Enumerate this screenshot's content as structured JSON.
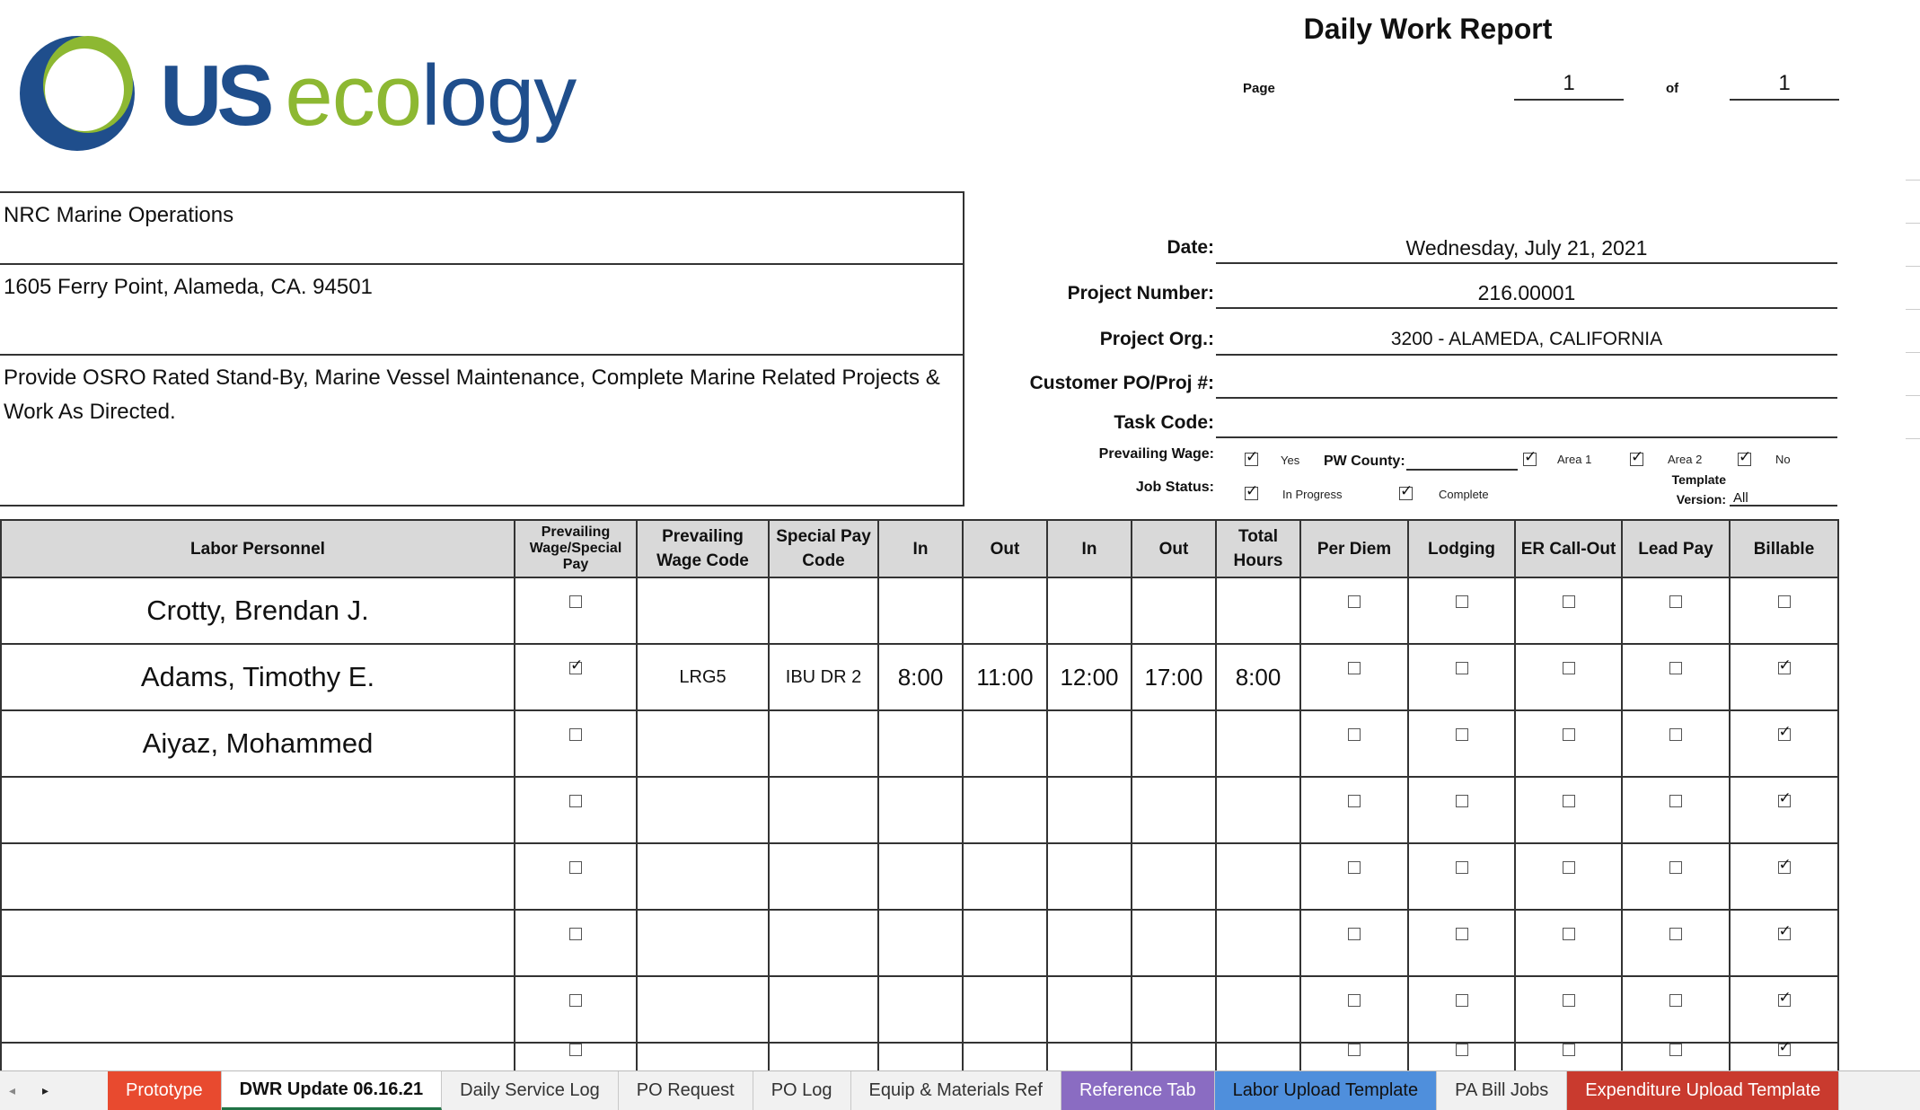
{
  "logo": {
    "us": "US",
    "eco": "eco",
    "logy": "logy"
  },
  "header": {
    "title": "Daily Work Report",
    "page_label": "Page",
    "page_number": "1",
    "of_label": "of",
    "page_total": "1"
  },
  "address": {
    "name": "NRC Marine Operations",
    "street": "1605 Ferry Point, Alameda, CA. 94501",
    "description": "Provide OSRO Rated Stand-By, Marine Vessel Maintenance, Complete Marine Related Projects & Work As Directed."
  },
  "info": {
    "date_label": "Date:",
    "date_value": "Wednesday, July 21, 2021",
    "project_number_label": "Project Number:",
    "project_number_value": "216.00001",
    "project_org_label": "Project Org.:",
    "project_org_value": "3200 - ALAMEDA, CALIFORNIA",
    "customer_po_label": "Customer PO/Proj #:",
    "customer_po_value": "",
    "task_code_label": "Task Code:",
    "task_code_value": "",
    "prevailing_wage_label": "Prevailing Wage:",
    "yes_label": "Yes",
    "pw_county_label": "PW County:",
    "area1_label": "Area 1",
    "area2_label": "Area 2",
    "no_label": "No",
    "job_status_label": "Job Status:",
    "in_progress_label": "In Progress",
    "complete_label": "Complete",
    "template_label": "Template",
    "version_label": "Version:",
    "version_value": "All"
  },
  "table": {
    "headers": [
      "Labor Personnel",
      "Prevailing Wage/Special Pay",
      "Prevailing Wage Code",
      "Special Pay Code",
      "In",
      "Out",
      "In",
      "Out",
      "Total Hours",
      "Per Diem",
      "Lodging",
      "ER Call-Out",
      "Lead Pay",
      "Billable"
    ],
    "rows": [
      {
        "name": "Crotty, Brendan J.",
        "pw": false,
        "pw_code": "",
        "sp_code": "",
        "in1": "",
        "out1": "",
        "in2": "",
        "out2": "",
        "total": "",
        "per_diem": false,
        "lodging": false,
        "er": false,
        "lead": false,
        "billable": false
      },
      {
        "name": "Adams, Timothy E.",
        "pw": true,
        "pw_code": "LRG5",
        "sp_code": "IBU DR 2",
        "in1": "8:00",
        "out1": "11:00",
        "in2": "12:00",
        "out2": "17:00",
        "total": "8:00",
        "per_diem": false,
        "lodging": false,
        "er": false,
        "lead": false,
        "billable": true
      },
      {
        "name": "Aiyaz, Mohammed",
        "pw": false,
        "pw_code": "",
        "sp_code": "",
        "in1": "",
        "out1": "",
        "in2": "",
        "out2": "",
        "total": "",
        "per_diem": false,
        "lodging": false,
        "er": false,
        "lead": false,
        "billable": true
      },
      {
        "name": "",
        "pw": false,
        "pw_code": "",
        "sp_code": "",
        "in1": "",
        "out1": "",
        "in2": "",
        "out2": "",
        "total": "",
        "per_diem": false,
        "lodging": false,
        "er": false,
        "lead": false,
        "billable": true
      },
      {
        "name": "",
        "pw": false,
        "pw_code": "",
        "sp_code": "",
        "in1": "",
        "out1": "",
        "in2": "",
        "out2": "",
        "total": "",
        "per_diem": false,
        "lodging": false,
        "er": false,
        "lead": false,
        "billable": true
      },
      {
        "name": "",
        "pw": false,
        "pw_code": "",
        "sp_code": "",
        "in1": "",
        "out1": "",
        "in2": "",
        "out2": "",
        "total": "",
        "per_diem": false,
        "lodging": false,
        "er": false,
        "lead": false,
        "billable": true
      },
      {
        "name": "",
        "pw": false,
        "pw_code": "",
        "sp_code": "",
        "in1": "",
        "out1": "",
        "in2": "",
        "out2": "",
        "total": "",
        "per_diem": false,
        "lodging": false,
        "er": false,
        "lead": false,
        "billable": true
      },
      {
        "name": "",
        "pw": false,
        "pw_code": "",
        "sp_code": "",
        "in1": "",
        "out1": "",
        "in2": "",
        "out2": "",
        "total": "",
        "per_diem": false,
        "lodging": false,
        "er": false,
        "lead": false,
        "billable": true
      }
    ]
  },
  "tabs": [
    {
      "label": "Prototype",
      "style": "red"
    },
    {
      "label": "DWR Update 06.16.21",
      "style": "active"
    },
    {
      "label": "Daily Service Log",
      "style": ""
    },
    {
      "label": "PO Request",
      "style": ""
    },
    {
      "label": "PO Log",
      "style": ""
    },
    {
      "label": "Equip & Materials Ref",
      "style": ""
    },
    {
      "label": "Reference Tab",
      "style": "purple"
    },
    {
      "label": "Labor Upload Template",
      "style": "blue"
    },
    {
      "label": "PA Bill Jobs",
      "style": ""
    },
    {
      "label": "Expenditure Upload Template",
      "style": "darkred"
    }
  ],
  "colors": {
    "logo_blue": "#1f4e8c",
    "logo_green": "#8db832",
    "header_gray": "#d9d9d9"
  }
}
